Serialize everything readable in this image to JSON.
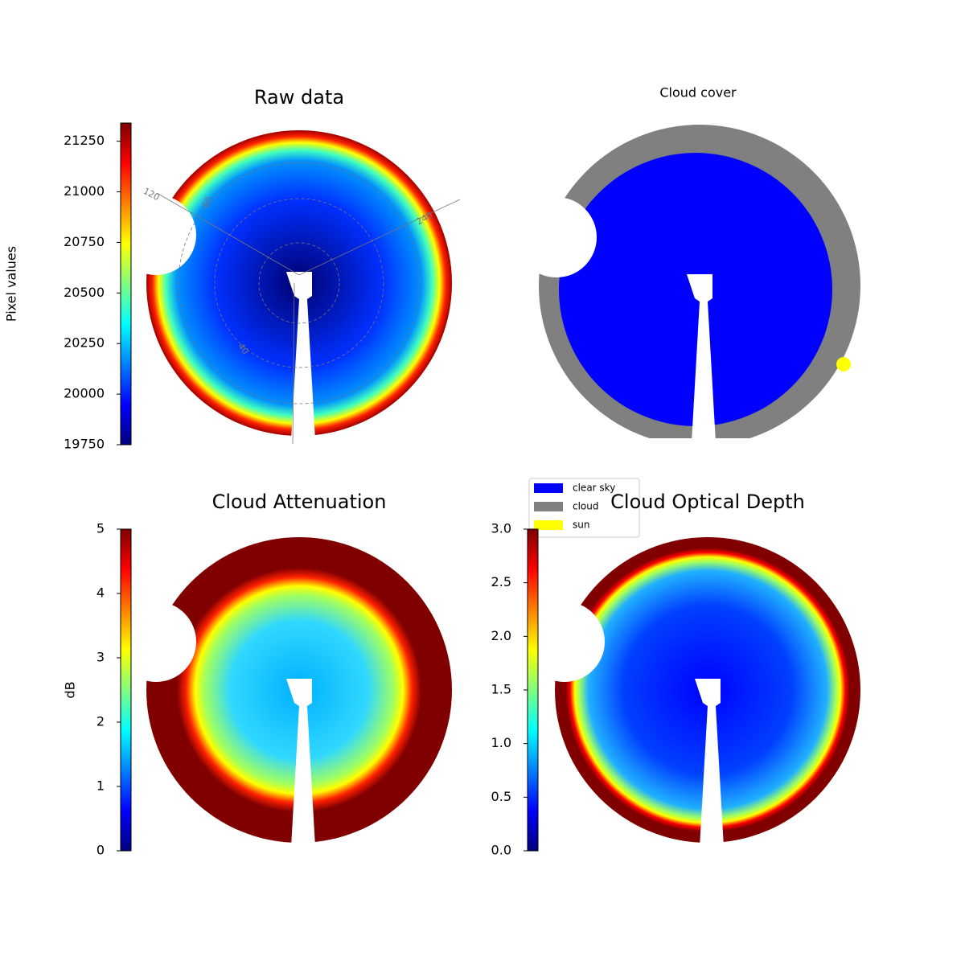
{
  "chart_data": [
    {
      "type": "heatmap",
      "title": "Raw data",
      "colorbar_label": "Pixel values",
      "colormap": "jet",
      "clim": [
        19750,
        21340
      ],
      "cticks": [
        19750,
        20000,
        20250,
        20500,
        20750,
        21000,
        21250
      ],
      "annotations": [
        "120",
        "60",
        "240",
        "40"
      ]
    },
    {
      "type": "classification",
      "title": "Cloud cover",
      "series": [
        {
          "name": "clear sky",
          "color": "#0000ff"
        },
        {
          "name": "cloud",
          "color": "#808080"
        },
        {
          "name": "sun",
          "color": "#ffff00"
        }
      ]
    },
    {
      "type": "heatmap",
      "title": "Cloud Attenuation",
      "colorbar_label": "dB",
      "colormap": "jet",
      "clim": [
        0,
        5
      ],
      "cticks": [
        0,
        1,
        2,
        3,
        4,
        5
      ]
    },
    {
      "type": "heatmap",
      "title": "Cloud Optical Depth",
      "colormap": "jet",
      "clim": [
        0,
        3
      ],
      "cticks": [
        {
          "value": 0,
          "label": "0.0"
        },
        0.5,
        {
          "value": 1,
          "label": "1.0"
        },
        1.5,
        {
          "value": 2,
          "label": "2.0"
        },
        2.5,
        {
          "value": 3,
          "label": "3.0"
        }
      ]
    }
  ]
}
